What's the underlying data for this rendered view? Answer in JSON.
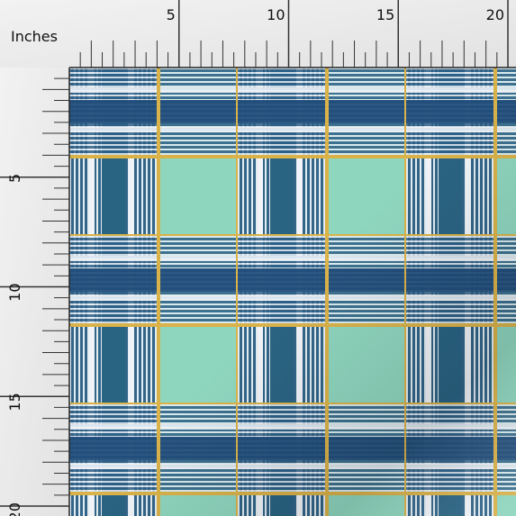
{
  "ruler": {
    "unit_label": "Inches",
    "top_labels": [
      "5",
      "10",
      "15",
      "20"
    ],
    "left_labels": [
      "5",
      "10",
      "15",
      "20"
    ]
  }
}
